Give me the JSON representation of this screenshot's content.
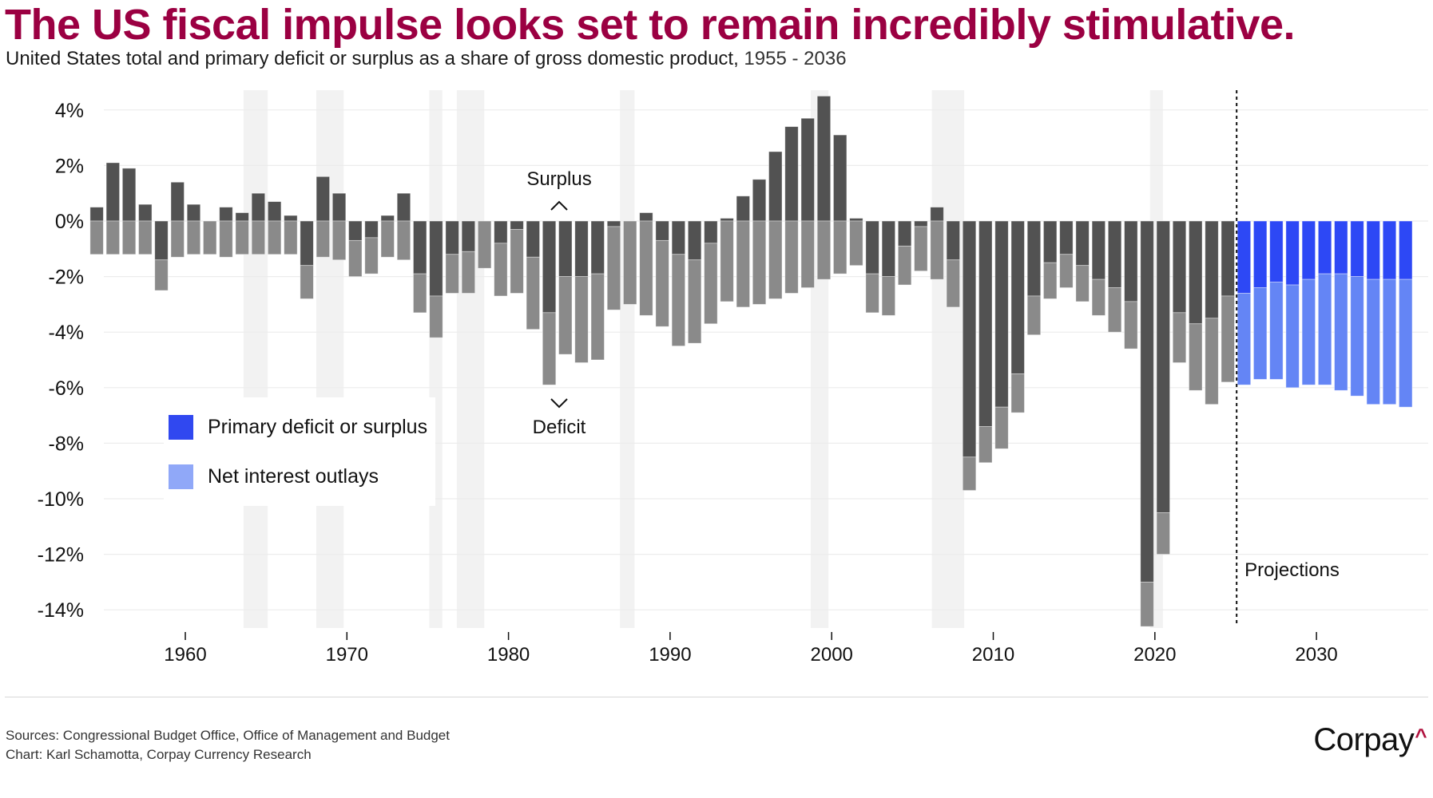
{
  "header": {
    "title": "The US fiscal impulse looks set to remain incredibly stimulative.",
    "subtitle": "United States total and primary deficit or surplus as a share of gross domestic product,",
    "subtitle_range": " 1955 - 2036"
  },
  "footer": {
    "sources": "Sources: Congressional Budget Office, Office of Management and Budget",
    "credit": "Chart: Karl Schamotta, Corpay Currency Research",
    "logo_text": "Corpay",
    "logo_mark": "^"
  },
  "colors": {
    "title": "#9b0042",
    "historical_primary": "#525252",
    "historical_interest": "#8a8a8a",
    "projected_primary": "#2d48f5",
    "projected_interest": "#6485f5",
    "legend_primary": "#3048f0",
    "legend_interest": "#90a8f8",
    "recession_shading": "#f2f2f2",
    "gridline": "#ececec"
  },
  "chart_data": {
    "type": "bar",
    "stacked": true,
    "title": "The US fiscal impulse looks set to remain incredibly stimulative.",
    "subtitle": "United States total and primary deficit or surplus as a share of gross domestic product, 1955 - 2036",
    "xlabel": "",
    "ylabel": "",
    "ylim": [
      -14.6,
      4.6
    ],
    "yticks": [
      4,
      2,
      0,
      -2,
      -4,
      -6,
      -8,
      -10,
      -12,
      -14
    ],
    "ytick_labels": [
      "4%",
      "2%",
      "0%",
      "-2%",
      "-4%",
      "-6%",
      "-8%",
      "-10%",
      "-12%",
      "-14%"
    ],
    "xticks": [
      1960,
      1970,
      1980,
      1990,
      2000,
      2010,
      2020,
      2030
    ],
    "xtick_labels": [
      "1960",
      "1970",
      "1980",
      "1990",
      "2000",
      "2010",
      "2020",
      "2030"
    ],
    "grid": "horizontal",
    "legend_position": "center-left",
    "legend": [
      {
        "name": "Primary deficit or surplus",
        "color_key": "legend_primary"
      },
      {
        "name": "Net interest outlays",
        "color_key": "legend_interest"
      }
    ],
    "annotations": {
      "surplus": "Surplus",
      "deficit": "Deficit",
      "surplus_arrow": "^",
      "deficit_arrow": "v",
      "projections": "Projections"
    },
    "projection_start_year": 2026,
    "recession_periods": [
      [
        1963.6,
        1965.1
      ],
      [
        1968.1,
        1969.8
      ],
      [
        1975.1,
        1975.9
      ],
      [
        1976.8,
        1978.5
      ],
      [
        1986.9,
        1987.8
      ],
      [
        1998.7,
        1999.8
      ],
      [
        2006.2,
        2008.2
      ],
      [
        2019.7,
        2020.5
      ]
    ],
    "years": [
      1955,
      1956,
      1957,
      1958,
      1959,
      1960,
      1961,
      1962,
      1963,
      1964,
      1965,
      1966,
      1967,
      1968,
      1969,
      1970,
      1971,
      1972,
      1973,
      1974,
      1975,
      1976,
      1977,
      1978,
      1979,
      1980,
      1981,
      1982,
      1983,
      1984,
      1985,
      1986,
      1987,
      1988,
      1989,
      1990,
      1991,
      1992,
      1993,
      1994,
      1995,
      1996,
      1997,
      1998,
      1999,
      2000,
      2001,
      2002,
      2003,
      2004,
      2005,
      2006,
      2007,
      2008,
      2009,
      2010,
      2011,
      2012,
      2013,
      2014,
      2015,
      2016,
      2017,
      2018,
      2019,
      2020,
      2021,
      2022,
      2023,
      2024,
      2025,
      2026,
      2027,
      2028,
      2029,
      2030,
      2031,
      2032,
      2033,
      2034,
      2035,
      2036
    ],
    "series": [
      {
        "name": "Primary deficit or surplus",
        "values": [
          0.5,
          2.1,
          1.9,
          0.6,
          -1.4,
          1.4,
          0.6,
          0.0,
          0.5,
          0.3,
          1.0,
          0.7,
          0.2,
          -1.6,
          1.6,
          1.0,
          -0.7,
          -0.6,
          0.2,
          1.0,
          -1.9,
          -2.7,
          -1.2,
          -1.1,
          0.0,
          -0.8,
          -0.3,
          -1.3,
          -3.3,
          -2.0,
          -2.0,
          -1.9,
          -0.2,
          0.0,
          0.3,
          -0.7,
          -1.2,
          -1.4,
          -0.8,
          0.1,
          0.9,
          1.5,
          2.5,
          3.4,
          3.7,
          4.5,
          3.1,
          0.1,
          -1.9,
          -2.0,
          -0.9,
          -0.2,
          0.5,
          -1.4,
          -8.5,
          -7.4,
          -6.7,
          -5.5,
          -2.7,
          -1.5,
          -1.2,
          -1.6,
          -2.1,
          -2.4,
          -2.9,
          -13.0,
          -10.5,
          -3.3,
          -3.7,
          -3.5,
          -2.7,
          -2.6,
          -2.4,
          -2.2,
          -2.3,
          -2.1,
          -1.9,
          -1.9,
          -2.0,
          -2.1,
          -2.1,
          -2.1
        ]
      },
      {
        "name": "Net interest outlays",
        "values": [
          1.2,
          1.2,
          1.2,
          1.2,
          1.1,
          1.3,
          1.2,
          1.2,
          1.3,
          1.2,
          1.2,
          1.2,
          1.2,
          1.2,
          1.3,
          1.4,
          1.3,
          1.3,
          1.3,
          1.4,
          1.4,
          1.5,
          1.4,
          1.5,
          1.7,
          1.9,
          2.3,
          2.6,
          2.6,
          2.8,
          3.1,
          3.1,
          3.0,
          3.0,
          3.4,
          3.1,
          3.3,
          3.0,
          2.9,
          2.9,
          3.1,
          3.0,
          2.8,
          2.6,
          2.4,
          2.1,
          1.9,
          1.6,
          1.4,
          1.4,
          1.4,
          1.6,
          2.1,
          1.7,
          1.2,
          1.3,
          1.5,
          1.4,
          1.4,
          1.3,
          1.2,
          1.3,
          1.3,
          1.6,
          1.7,
          1.6,
          1.5,
          1.8,
          2.4,
          3.1,
          3.1,
          3.3,
          3.3,
          3.5,
          3.7,
          3.8,
          4.0,
          4.2,
          4.3,
          4.5,
          4.5,
          4.6
        ]
      }
    ],
    "total_balance": [
      -0.7,
      0.9,
      0.7,
      -0.6,
      -2.5,
      0.1,
      -0.6,
      -1.2,
      -0.8,
      -0.9,
      -0.2,
      -0.5,
      -1.0,
      -2.8,
      0.3,
      -0.4,
      -2.0,
      -1.9,
      -1.1,
      -0.4,
      -3.3,
      -4.2,
      -2.6,
      -2.6,
      -1.7,
      -2.7,
      -2.6,
      -3.9,
      -5.9,
      -4.8,
      -5.1,
      -5.0,
      -3.2,
      -3.0,
      -3.1,
      -3.8,
      -4.5,
      -4.4,
      -3.7,
      -2.8,
      -2.2,
      -1.5,
      -0.3,
      0.8,
      1.3,
      2.4,
      1.2,
      -1.5,
      -3.3,
      -3.4,
      -2.3,
      -1.8,
      -1.6,
      -3.1,
      -9.7,
      -8.7,
      -8.2,
      -6.9,
      -4.1,
      -2.8,
      -2.4,
      -2.9,
      -3.4,
      -4.0,
      -4.6,
      -14.6,
      -12.0,
      -5.1,
      -6.1,
      -6.6,
      -5.8,
      -5.9,
      -5.7,
      -5.7,
      -6.0,
      -5.9,
      -5.9,
      -6.1,
      -6.3,
      -6.6,
      -6.6,
      -6.7
    ]
  }
}
